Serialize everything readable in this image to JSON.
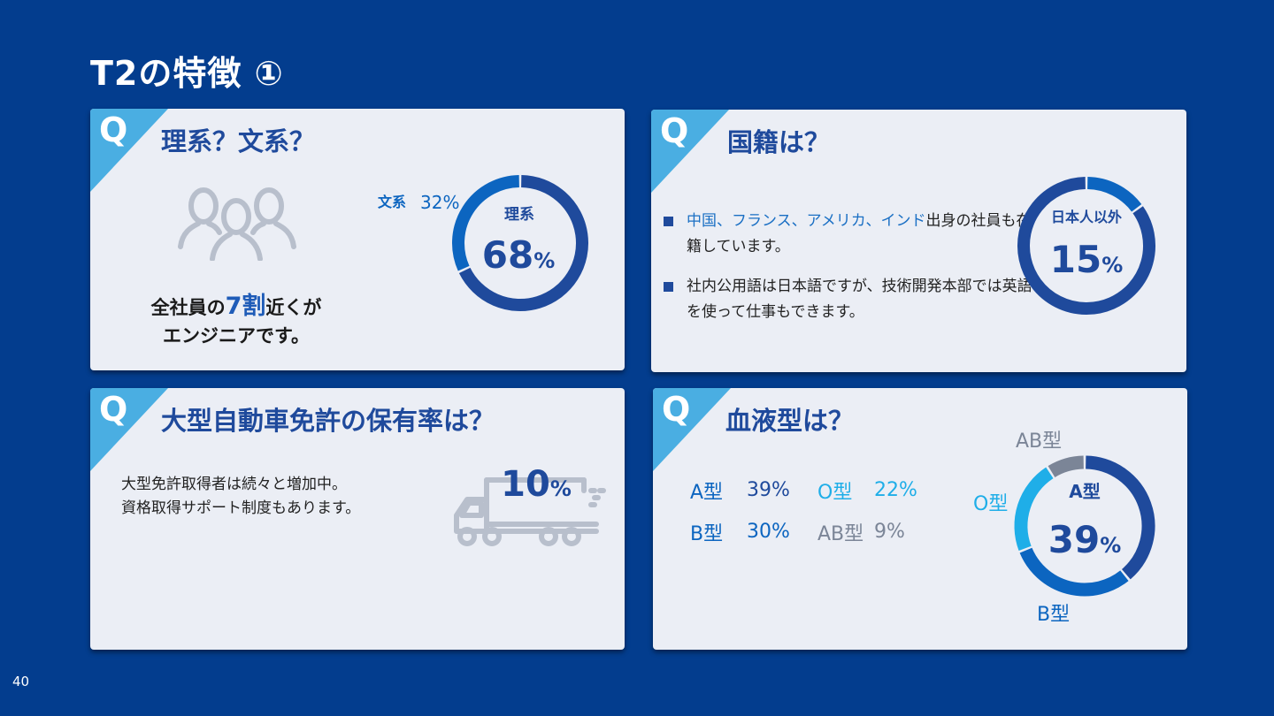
{
  "page": {
    "title": "T2の特徴 ①",
    "page_number": "40"
  },
  "q_label": "Q",
  "colors": {
    "background": "#033d8e",
    "card": "#ebeef5",
    "accent_triangle": "#4aaee2",
    "navy": "#1f4a9c",
    "blue": "#0c65c0",
    "cyan": "#1faee8",
    "gray": "#7b8597"
  },
  "cards": {
    "science": {
      "title": "理系？文系？",
      "icon": "people-group-icon",
      "caption_prefix": "全社員の",
      "caption_highlight": "7割",
      "caption_suffix": "近くが",
      "caption_line2": "エンジニアです。",
      "chart_label": "理系",
      "chart_value": "68",
      "percent_sign": "%",
      "other_label": "文系",
      "other_value": "32%"
    },
    "nationality": {
      "title": "国籍は？",
      "bullet1_highlight": "中国、フランス、アメリカ、インド",
      "bullet1_rest": "出身の社員も在籍しています。",
      "bullet2": "社内公用語は日本語ですが、技術開発本部では英語を使って仕事もできます。",
      "chart_label": "日本人以外",
      "chart_value": "15",
      "percent_sign": "%"
    },
    "license": {
      "title": "大型自動車免許の保有率は？",
      "line1": "大型免許取得者は続々と増加中。",
      "line2": "資格取得サポート制度もあります。",
      "icon": "truck-icon",
      "value": "10",
      "percent_sign": "%"
    },
    "blood": {
      "title": "血液型は？",
      "rows": [
        {
          "name1": "A型",
          "val1": "39%",
          "name2": "O型",
          "val2": "22%"
        },
        {
          "name1": "B型",
          "val1": "30%",
          "name2": "AB型",
          "val2": "9%"
        }
      ],
      "center_label": "A型",
      "center_value": "39",
      "percent_sign": "%",
      "label_ab": "AB型",
      "label_o": "O型",
      "label_b": "B型"
    }
  },
  "chart_data": [
    {
      "type": "pie",
      "categories": [
        "理系",
        "文系"
      ],
      "values": [
        68,
        32
      ],
      "colors": [
        "#1f4a9c",
        "#0c65c0"
      ]
    },
    {
      "type": "pie",
      "categories": [
        "日本人以外",
        ""
      ],
      "values": [
        15,
        85
      ],
      "colors": [
        "#0c65c0",
        "#1f4a9c"
      ]
    },
    {
      "type": "pie",
      "categories": [
        "A型",
        "B型",
        "O型",
        "AB型"
      ],
      "values": [
        39,
        30,
        22,
        9
      ],
      "colors": [
        "#1f4a9c",
        "#0c65c0",
        "#1faee8",
        "#7b8597"
      ]
    }
  ]
}
